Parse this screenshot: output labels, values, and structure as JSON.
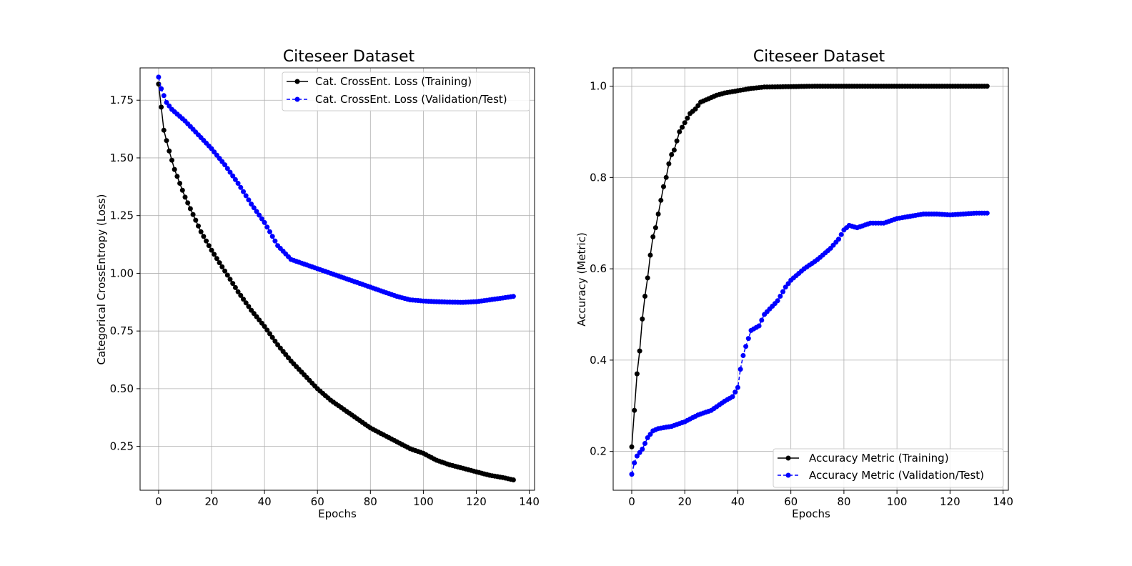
{
  "chart_data": [
    {
      "type": "line",
      "title": "Citeseer Dataset",
      "xlabel": "Epochs",
      "ylabel": "Categorical CrossEntropy (Loss)",
      "xlim": [
        -7,
        142
      ],
      "ylim": [
        0.06,
        1.89
      ],
      "xticks": [
        0,
        20,
        40,
        60,
        80,
        100,
        120,
        140
      ],
      "yticks": [
        0.25,
        0.5,
        0.75,
        1.0,
        1.25,
        1.5,
        1.75
      ],
      "ytick_labels": [
        "0.25",
        "0.50",
        "0.75",
        "1.00",
        "1.25",
        "1.50",
        "1.75"
      ],
      "grid": true,
      "legend_position": "upper right",
      "series": [
        {
          "name": "Cat. CrossEnt. Loss (Training)",
          "color": "#000000",
          "linestyle": "solid",
          "marker": "circle",
          "x": [
            0,
            2,
            4,
            6,
            8,
            10,
            12,
            14,
            16,
            18,
            20,
            25,
            30,
            35,
            40,
            45,
            50,
            55,
            60,
            65,
            70,
            75,
            80,
            85,
            90,
            95,
            100,
            105,
            110,
            115,
            120,
            125,
            130,
            134
          ],
          "y": [
            1.82,
            1.62,
            1.53,
            1.45,
            1.39,
            1.33,
            1.28,
            1.23,
            1.18,
            1.14,
            1.1,
            1.01,
            0.92,
            0.84,
            0.77,
            0.69,
            0.62,
            0.56,
            0.5,
            0.45,
            0.41,
            0.37,
            0.33,
            0.3,
            0.27,
            0.24,
            0.22,
            0.19,
            0.17,
            0.155,
            0.14,
            0.125,
            0.115,
            0.105
          ]
        },
        {
          "name": "Cat. CrossEnt. Loss (Validation/Test)",
          "color": "#0000ff",
          "linestyle": "dashed",
          "marker": "circle",
          "x": [
            0,
            1,
            2,
            3,
            5,
            10,
            15,
            20,
            25,
            30,
            35,
            40,
            45,
            50,
            55,
            60,
            65,
            70,
            75,
            80,
            85,
            90,
            95,
            100,
            105,
            110,
            115,
            120,
            125,
            130,
            134
          ],
          "y": [
            1.85,
            1.8,
            1.77,
            1.74,
            1.71,
            1.66,
            1.6,
            1.54,
            1.47,
            1.39,
            1.3,
            1.22,
            1.12,
            1.06,
            1.04,
            1.02,
            1.0,
            0.98,
            0.96,
            0.94,
            0.92,
            0.9,
            0.885,
            0.88,
            0.877,
            0.875,
            0.874,
            0.877,
            0.885,
            0.893,
            0.9
          ]
        }
      ]
    },
    {
      "type": "line",
      "title": "Citeseer Dataset",
      "xlabel": "Epochs",
      "ylabel": "Accuracy (Metric)",
      "xlim": [
        -7,
        142
      ],
      "ylim": [
        0.115,
        1.04
      ],
      "xticks": [
        0,
        20,
        40,
        60,
        80,
        100,
        120,
        140
      ],
      "yticks": [
        0.2,
        0.4,
        0.6,
        0.8,
        1.0
      ],
      "ytick_labels": [
        "0.2",
        "0.4",
        "0.6",
        "0.8",
        "1.0"
      ],
      "grid": true,
      "legend_position": "lower right",
      "series": [
        {
          "name": "Accuracy Metric (Training)",
          "color": "#000000",
          "linestyle": "solid",
          "marker": "circle",
          "x": [
            0,
            1,
            2,
            3,
            4,
            5,
            6,
            7,
            8,
            9,
            10,
            11,
            12,
            13,
            14,
            15,
            16,
            17,
            18,
            19,
            20,
            22,
            24,
            26,
            28,
            30,
            32,
            35,
            40,
            45,
            50,
            60,
            70,
            80,
            100,
            120,
            134
          ],
          "y": [
            0.21,
            0.29,
            0.37,
            0.42,
            0.49,
            0.54,
            0.58,
            0.63,
            0.67,
            0.69,
            0.72,
            0.75,
            0.78,
            0.8,
            0.83,
            0.85,
            0.86,
            0.88,
            0.9,
            0.91,
            0.92,
            0.94,
            0.95,
            0.965,
            0.97,
            0.975,
            0.98,
            0.985,
            0.99,
            0.995,
            0.998,
            0.999,
            1.0,
            1.0,
            1.0,
            1.0,
            1.0
          ]
        },
        {
          "name": "Accuracy Metric (Validation/Test)",
          "color": "#0000ff",
          "linestyle": "dashed",
          "marker": "circle",
          "x": [
            0,
            1,
            2,
            4,
            6,
            8,
            10,
            15,
            20,
            25,
            30,
            35,
            38,
            40,
            41,
            42,
            43,
            45,
            48,
            50,
            55,
            58,
            60,
            65,
            70,
            75,
            78,
            80,
            82,
            85,
            90,
            95,
            100,
            105,
            110,
            115,
            120,
            125,
            130,
            134
          ],
          "y": [
            0.15,
            0.175,
            0.19,
            0.205,
            0.23,
            0.245,
            0.25,
            0.255,
            0.265,
            0.28,
            0.29,
            0.31,
            0.32,
            0.34,
            0.38,
            0.41,
            0.43,
            0.465,
            0.475,
            0.5,
            0.53,
            0.56,
            0.575,
            0.6,
            0.62,
            0.645,
            0.665,
            0.685,
            0.695,
            0.69,
            0.7,
            0.7,
            0.71,
            0.715,
            0.72,
            0.72,
            0.718,
            0.72,
            0.722,
            0.722
          ]
        }
      ]
    }
  ]
}
